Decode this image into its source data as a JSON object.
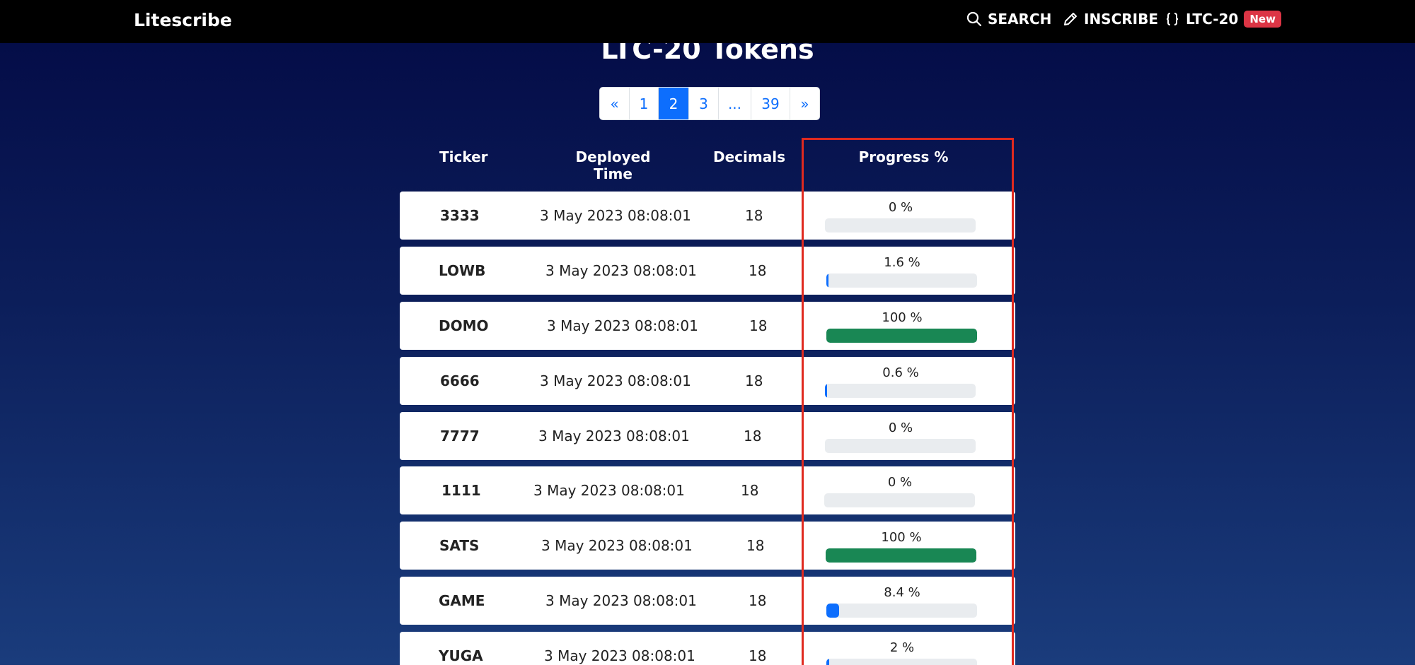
{
  "nav": {
    "brand": "Litescribe",
    "search_label": "SEARCH",
    "inscribe_label": "INSCRIBE",
    "ltc20_label": "LTC-20",
    "new_badge": "New"
  },
  "page_title": "LTC-20 Tokens",
  "pagination": {
    "prev": "«",
    "pages": [
      "1",
      "2",
      "3",
      "...",
      "39"
    ],
    "next": "»",
    "active": "2"
  },
  "table": {
    "headers": [
      "Ticker",
      "Deployed Time",
      "Decimals",
      "Progress %"
    ],
    "rows": [
      {
        "ticker": "3333",
        "deployed": "3 May 2023 08:08:01",
        "decimals": "18",
        "progress_label": "0 %",
        "progress": 0,
        "color": "#0d6efd"
      },
      {
        "ticker": "LOWB",
        "deployed": "3 May 2023 08:08:01",
        "decimals": "18",
        "progress_label": "1.6 %",
        "progress": 1.6,
        "color": "#0d6efd"
      },
      {
        "ticker": "DOMO",
        "deployed": "3 May 2023 08:08:01",
        "decimals": "18",
        "progress_label": "100 %",
        "progress": 100,
        "color": "#198754"
      },
      {
        "ticker": "6666",
        "deployed": "3 May 2023 08:08:01",
        "decimals": "18",
        "progress_label": "0.6 %",
        "progress": 0.6,
        "color": "#0d6efd"
      },
      {
        "ticker": "7777",
        "deployed": "3 May 2023 08:08:01",
        "decimals": "18",
        "progress_label": "0 %",
        "progress": 0,
        "color": "#0d6efd"
      },
      {
        "ticker": "1111",
        "deployed": "3 May 2023 08:08:01",
        "decimals": "18",
        "progress_label": "0 %",
        "progress": 0,
        "color": "#0d6efd"
      },
      {
        "ticker": "SATS",
        "deployed": "3 May 2023 08:08:01",
        "decimals": "18",
        "progress_label": "100 %",
        "progress": 100,
        "color": "#198754"
      },
      {
        "ticker": "GAME",
        "deployed": "3 May 2023 08:08:01",
        "decimals": "18",
        "progress_label": "8.4 %",
        "progress": 8.4,
        "color": "#0d6efd"
      },
      {
        "ticker": "YUGA",
        "deployed": "3 May 2023 08:08:01",
        "decimals": "18",
        "progress_label": "2 %",
        "progress": 2,
        "color": "#0d6efd"
      }
    ]
  }
}
